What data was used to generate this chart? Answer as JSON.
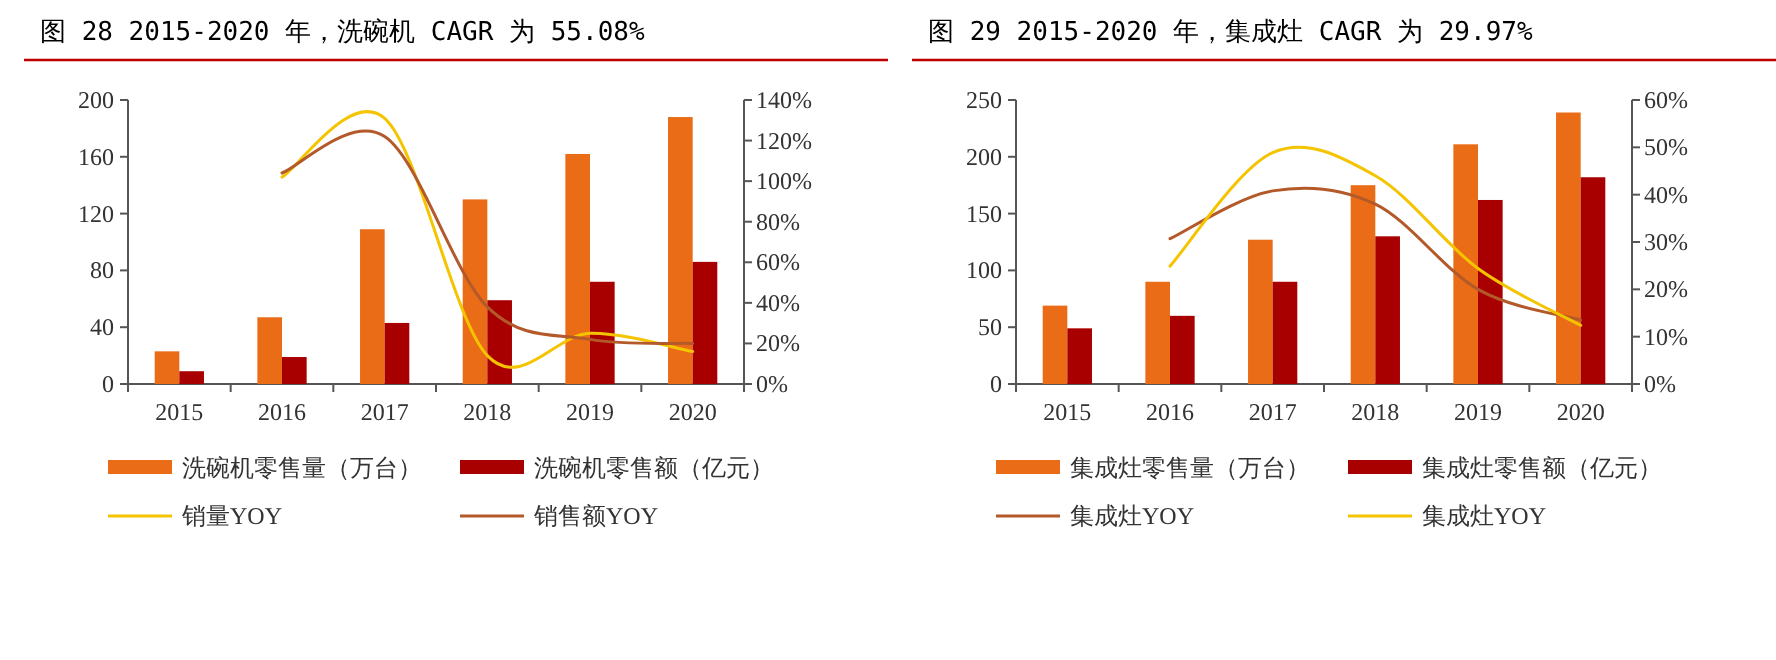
{
  "chart_data": [
    {
      "type": "bar",
      "title": "图 28 2015-2020 年，洗碗机 CAGR 为 55.08%",
      "categories": [
        "2015",
        "2016",
        "2017",
        "2018",
        "2019",
        "2020"
      ],
      "series": [
        {
          "name": "洗碗机零售量（万台）",
          "color": "#eb6c17",
          "values": [
            23,
            47,
            109,
            130,
            162,
            188
          ]
        },
        {
          "name": "洗碗机零售额（亿元）",
          "color": "#a80000",
          "values": [
            9,
            19,
            43,
            59,
            72,
            86
          ]
        },
        {
          "name": "销量YOY",
          "type": "line",
          "axis": "y2",
          "color": "#f5c400",
          "values": [
            null,
            102,
            131,
            14,
            25,
            16
          ]
        },
        {
          "name": "销售额YOY",
          "type": "line",
          "axis": "y2",
          "color": "#b3592a",
          "values": [
            null,
            104,
            122,
            38,
            22,
            20
          ]
        }
      ],
      "ylim": [
        0,
        200
      ],
      "yticks": [
        0,
        40,
        80,
        120,
        160,
        200
      ],
      "y2lim": [
        0,
        140
      ],
      "y2ticks": [
        {
          "value": 0,
          "label": "0%"
        },
        {
          "value": 20,
          "label": "20%"
        },
        {
          "value": 40,
          "label": "40%"
        },
        {
          "value": 60,
          "label": "60%"
        },
        {
          "value": 80,
          "label": "80%"
        },
        {
          "value": 100,
          "label": "100%"
        },
        {
          "value": 120,
          "label": "120%"
        },
        {
          "value": 140,
          "label": "140%"
        }
      ],
      "legend": "bottom",
      "grid": false
    },
    {
      "type": "bar",
      "title": "图 29 2015-2020 年，集成灶 CAGR 为 29.97%",
      "categories": [
        "2015",
        "2016",
        "2017",
        "2018",
        "2019",
        "2020"
      ],
      "series": [
        {
          "name": "集成灶零售量（万台）",
          "color": "#eb6c17",
          "values": [
            69,
            90,
            127,
            175,
            211,
            239
          ]
        },
        {
          "name": "集成灶零售额（亿元）",
          "color": "#a80000",
          "values": [
            49,
            60,
            90,
            130,
            162,
            182
          ]
        },
        {
          "name": "集成灶YOY",
          "type": "line",
          "axis": "y2",
          "color": "#b3592a",
          "values": [
            null,
            30.7,
            40.8,
            38,
            20,
            13.5
          ]
        },
        {
          "name": "集成灶YOY",
          "type": "line",
          "axis": "y2",
          "color": "#f5c400",
          "values": [
            null,
            24.9,
            48.9,
            44,
            24.4,
            12.4
          ]
        }
      ],
      "ylim": [
        0,
        250
      ],
      "yticks": [
        0,
        50,
        100,
        150,
        200,
        250
      ],
      "y2lim": [
        0,
        60
      ],
      "y2ticks": [
        {
          "value": 0,
          "label": "0%"
        },
        {
          "value": 10,
          "label": "10%"
        },
        {
          "value": 20,
          "label": "20%"
        },
        {
          "value": 30,
          "label": "30%"
        },
        {
          "value": 40,
          "label": "40%"
        },
        {
          "value": 50,
          "label": "50%"
        },
        {
          "value": 60,
          "label": "60%"
        }
      ],
      "legend": "bottom",
      "grid": false
    }
  ]
}
